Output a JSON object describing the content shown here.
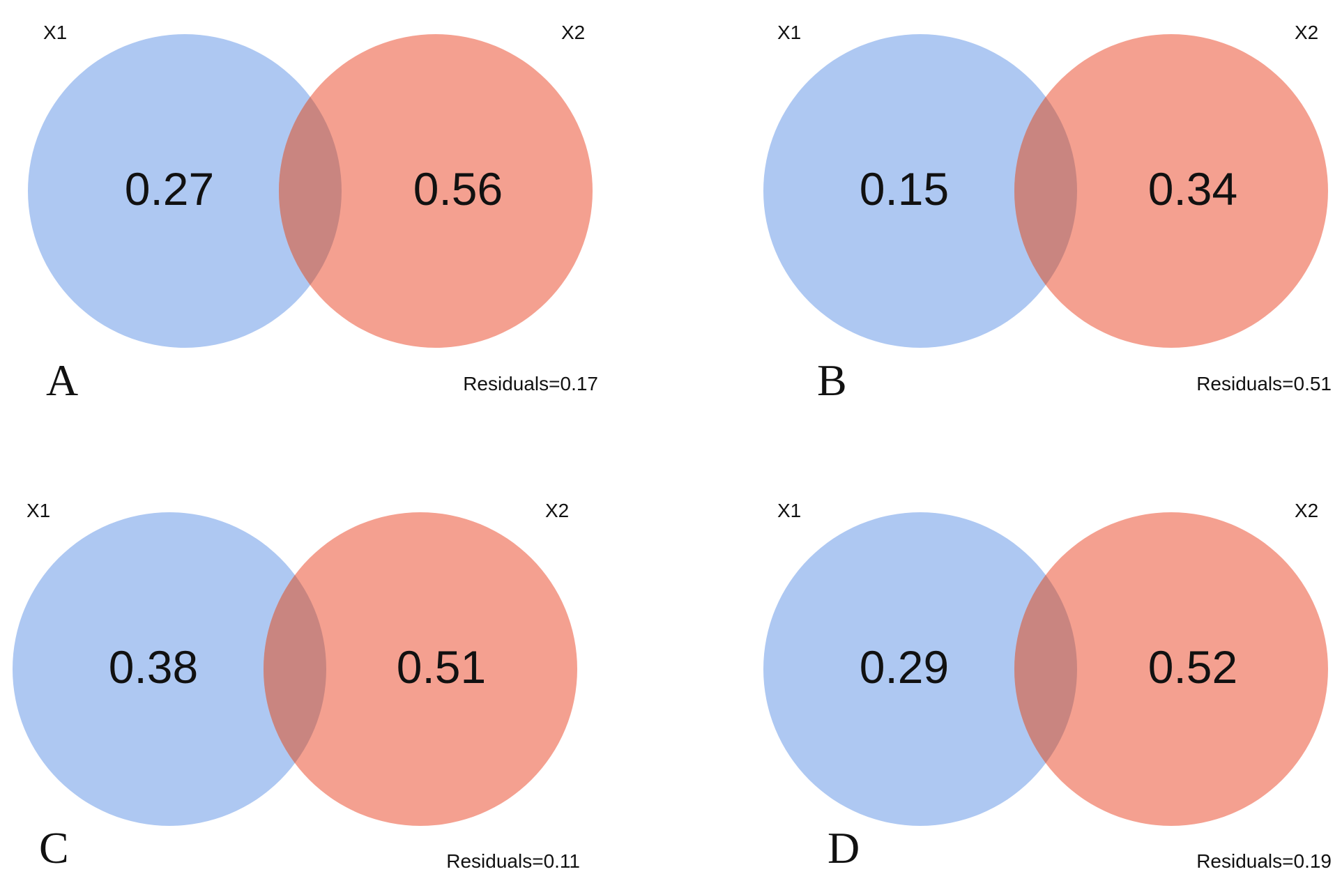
{
  "colors": {
    "x1": "#aec8f2",
    "x2": "#f4a090",
    "overlap": "#c98580",
    "text": "#111111"
  },
  "panels": [
    {
      "letter": "A",
      "set1": "X1",
      "set2": "X2",
      "value1": "0.27",
      "value2": "0.56",
      "residuals": "Residuals=0.17"
    },
    {
      "letter": "B",
      "set1": "X1",
      "set2": "X2",
      "value1": "0.15",
      "value2": "0.34",
      "residuals": "Residuals=0.51"
    },
    {
      "letter": "C",
      "set1": "X1",
      "set2": "X2",
      "value1": "0.38",
      "value2": "0.51",
      "residuals": "Residuals=0.11"
    },
    {
      "letter": "D",
      "set1": "X1",
      "set2": "X2",
      "value1": "0.29",
      "value2": "0.52",
      "residuals": "Residuals=0.19"
    }
  ]
}
